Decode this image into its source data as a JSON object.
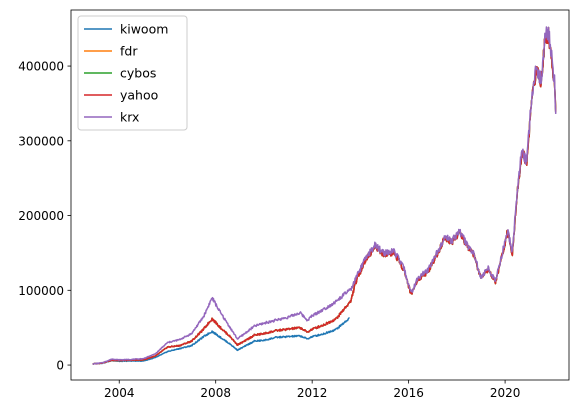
{
  "chart_data": {
    "type": "line",
    "title": "",
    "xlabel": "",
    "ylabel": "",
    "xlim": [
      2002.0,
      2022.65
    ],
    "ylim": [
      -20000,
      475000
    ],
    "grid": false,
    "legend_position": "top-left",
    "x_ticks": [
      2004,
      2008,
      2012,
      2016,
      2020
    ],
    "x_tick_labels": [
      "2004",
      "2008",
      "2012",
      "2016",
      "2020"
    ],
    "y_ticks": [
      0,
      100000,
      200000,
      300000,
      400000
    ],
    "y_tick_labels": [
      "0",
      "100000",
      "200000",
      "300000",
      "400000"
    ],
    "series": [
      {
        "name": "kiwoom",
        "color": "#1f77b4",
        "points": [
          [
            2002.9,
            1500
          ],
          [
            2003.3,
            2500
          ],
          [
            2003.7,
            6000
          ],
          [
            2004.0,
            5000
          ],
          [
            2004.5,
            5500
          ],
          [
            2005.0,
            5500
          ],
          [
            2005.5,
            10000
          ],
          [
            2006.0,
            18000
          ],
          [
            2006.5,
            22000
          ],
          [
            2007.0,
            26000
          ],
          [
            2007.5,
            38000
          ],
          [
            2007.85,
            45000
          ],
          [
            2008.2,
            37000
          ],
          [
            2008.6,
            28000
          ],
          [
            2008.9,
            20000
          ],
          [
            2009.2,
            25000
          ],
          [
            2009.6,
            32000
          ],
          [
            2010.0,
            33000
          ],
          [
            2010.5,
            37000
          ],
          [
            2011.0,
            38000
          ],
          [
            2011.5,
            39000
          ],
          [
            2011.8,
            35000
          ],
          [
            2012.0,
            38000
          ],
          [
            2012.5,
            42000
          ],
          [
            2013.0,
            48000
          ],
          [
            2013.45,
            60000
          ],
          [
            2013.55,
            63000
          ]
        ]
      },
      {
        "name": "fdr",
        "color": "#ff7f0e",
        "points": [
          [
            2002.9,
            1500
          ],
          [
            2003.3,
            2800
          ],
          [
            2003.7,
            6500
          ],
          [
            2004.0,
            6000
          ],
          [
            2004.5,
            6500
          ],
          [
            2005.0,
            7000
          ],
          [
            2005.5,
            12000
          ],
          [
            2006.0,
            24000
          ],
          [
            2006.5,
            26000
          ],
          [
            2007.0,
            32000
          ],
          [
            2007.5,
            48000
          ],
          [
            2007.85,
            62000
          ],
          [
            2008.2,
            50000
          ],
          [
            2008.6,
            38000
          ],
          [
            2008.9,
            27000
          ],
          [
            2009.2,
            32000
          ],
          [
            2009.6,
            40000
          ],
          [
            2010.0,
            42000
          ],
          [
            2010.5,
            46000
          ],
          [
            2011.0,
            48000
          ],
          [
            2011.5,
            50000
          ],
          [
            2011.8,
            44000
          ],
          [
            2012.0,
            48000
          ],
          [
            2012.5,
            54000
          ],
          [
            2013.0,
            62000
          ],
          [
            2013.45,
            80000
          ],
          [
            2013.6,
            85000
          ],
          [
            2013.8,
            110000
          ],
          [
            2014.2,
            140000
          ],
          [
            2014.6,
            158000
          ],
          [
            2015.0,
            148000
          ],
          [
            2015.4,
            150000
          ],
          [
            2015.8,
            128000
          ],
          [
            2016.1,
            95000
          ],
          [
            2016.4,
            115000
          ],
          [
            2016.8,
            125000
          ],
          [
            2017.2,
            150000
          ],
          [
            2017.5,
            170000
          ],
          [
            2017.8,
            165000
          ],
          [
            2018.1,
            178000
          ],
          [
            2018.4,
            160000
          ],
          [
            2018.7,
            148000
          ],
          [
            2019.0,
            115000
          ],
          [
            2019.3,
            128000
          ],
          [
            2019.6,
            110000
          ],
          [
            2019.9,
            150000
          ],
          [
            2020.1,
            178000
          ],
          [
            2020.3,
            150000
          ],
          [
            2020.5,
            230000
          ],
          [
            2020.7,
            285000
          ],
          [
            2020.9,
            270000
          ],
          [
            2021.1,
            355000
          ],
          [
            2021.3,
            395000
          ],
          [
            2021.5,
            380000
          ],
          [
            2021.65,
            435000
          ],
          [
            2021.8,
            445000
          ],
          [
            2021.95,
            405000
          ],
          [
            2022.05,
            375000
          ],
          [
            2022.1,
            338000
          ]
        ]
      },
      {
        "name": "cybos",
        "color": "#2ca02c",
        "points": [
          [
            2002.9,
            1500
          ],
          [
            2003.3,
            2800
          ],
          [
            2003.7,
            6500
          ],
          [
            2004.0,
            6000
          ],
          [
            2004.5,
            6500
          ],
          [
            2005.0,
            7000
          ],
          [
            2005.5,
            12000
          ],
          [
            2006.0,
            24000
          ],
          [
            2006.5,
            26000
          ],
          [
            2007.0,
            32000
          ],
          [
            2007.5,
            48000
          ],
          [
            2007.85,
            62000
          ],
          [
            2008.2,
            50000
          ],
          [
            2008.6,
            38000
          ],
          [
            2008.9,
            27000
          ],
          [
            2009.2,
            32000
          ],
          [
            2009.6,
            40000
          ],
          [
            2010.0,
            42000
          ],
          [
            2010.5,
            46000
          ],
          [
            2011.0,
            48000
          ],
          [
            2011.5,
            50000
          ],
          [
            2011.8,
            44000
          ],
          [
            2012.0,
            48000
          ],
          [
            2012.5,
            54000
          ],
          [
            2013.0,
            62000
          ],
          [
            2013.45,
            80000
          ],
          [
            2013.6,
            85000
          ],
          [
            2013.8,
            110000
          ],
          [
            2014.2,
            140000
          ],
          [
            2014.6,
            158000
          ],
          [
            2015.0,
            148000
          ],
          [
            2015.4,
            150000
          ],
          [
            2015.8,
            128000
          ],
          [
            2016.1,
            95000
          ],
          [
            2016.4,
            115000
          ],
          [
            2016.8,
            125000
          ],
          [
            2017.2,
            150000
          ],
          [
            2017.5,
            170000
          ],
          [
            2017.8,
            165000
          ],
          [
            2018.1,
            178000
          ],
          [
            2018.4,
            160000
          ],
          [
            2018.7,
            148000
          ],
          [
            2019.0,
            115000
          ],
          [
            2019.3,
            128000
          ],
          [
            2019.6,
            110000
          ],
          [
            2019.9,
            150000
          ],
          [
            2020.1,
            178000
          ],
          [
            2020.3,
            150000
          ],
          [
            2020.5,
            230000
          ],
          [
            2020.7,
            285000
          ],
          [
            2020.9,
            270000
          ],
          [
            2021.1,
            355000
          ],
          [
            2021.3,
            395000
          ],
          [
            2021.5,
            380000
          ],
          [
            2021.65,
            435000
          ],
          [
            2021.8,
            445000
          ],
          [
            2021.95,
            405000
          ],
          [
            2022.05,
            375000
          ],
          [
            2022.1,
            338000
          ]
        ]
      },
      {
        "name": "yahoo",
        "color": "#d62728",
        "points": [
          [
            2002.9,
            1500
          ],
          [
            2003.3,
            2800
          ],
          [
            2003.7,
            6500
          ],
          [
            2004.0,
            6000
          ],
          [
            2004.5,
            6500
          ],
          [
            2005.0,
            7000
          ],
          [
            2005.5,
            12000
          ],
          [
            2006.0,
            24000
          ],
          [
            2006.5,
            26000
          ],
          [
            2007.0,
            32000
          ],
          [
            2007.5,
            48000
          ],
          [
            2007.85,
            62000
          ],
          [
            2008.2,
            50000
          ],
          [
            2008.6,
            38000
          ],
          [
            2008.9,
            27000
          ],
          [
            2009.2,
            32000
          ],
          [
            2009.6,
            40000
          ],
          [
            2010.0,
            42000
          ],
          [
            2010.5,
            46000
          ],
          [
            2011.0,
            48000
          ],
          [
            2011.5,
            50000
          ],
          [
            2011.8,
            44000
          ],
          [
            2012.0,
            48000
          ],
          [
            2012.5,
            54000
          ],
          [
            2013.0,
            62000
          ],
          [
            2013.45,
            80000
          ],
          [
            2013.6,
            85000
          ],
          [
            2013.8,
            110000
          ],
          [
            2014.2,
            140000
          ],
          [
            2014.6,
            158000
          ],
          [
            2015.0,
            148000
          ],
          [
            2015.4,
            150000
          ],
          [
            2015.8,
            128000
          ],
          [
            2016.1,
            95000
          ],
          [
            2016.4,
            115000
          ],
          [
            2016.8,
            125000
          ],
          [
            2017.2,
            150000
          ],
          [
            2017.5,
            170000
          ],
          [
            2017.8,
            165000
          ],
          [
            2018.1,
            178000
          ],
          [
            2018.4,
            160000
          ],
          [
            2018.7,
            148000
          ],
          [
            2019.0,
            115000
          ],
          [
            2019.3,
            128000
          ],
          [
            2019.6,
            110000
          ],
          [
            2019.9,
            150000
          ],
          [
            2020.1,
            178000
          ],
          [
            2020.3,
            150000
          ],
          [
            2020.5,
            230000
          ],
          [
            2020.7,
            285000
          ],
          [
            2020.9,
            270000
          ],
          [
            2021.1,
            355000
          ],
          [
            2021.3,
            395000
          ],
          [
            2021.5,
            380000
          ],
          [
            2021.65,
            435000
          ],
          [
            2021.8,
            445000
          ],
          [
            2021.95,
            405000
          ],
          [
            2022.05,
            375000
          ],
          [
            2022.1,
            338000
          ]
        ]
      },
      {
        "name": "krx",
        "color": "#9467bd",
        "points": [
          [
            2002.9,
            1500
          ],
          [
            2003.3,
            3000
          ],
          [
            2003.7,
            8000
          ],
          [
            2004.0,
            7000
          ],
          [
            2004.5,
            7500
          ],
          [
            2005.0,
            8500
          ],
          [
            2005.5,
            15000
          ],
          [
            2006.0,
            30000
          ],
          [
            2006.5,
            34000
          ],
          [
            2007.0,
            42000
          ],
          [
            2007.5,
            65000
          ],
          [
            2007.85,
            90000
          ],
          [
            2008.2,
            70000
          ],
          [
            2008.6,
            50000
          ],
          [
            2008.9,
            35000
          ],
          [
            2009.2,
            42000
          ],
          [
            2009.6,
            52000
          ],
          [
            2010.0,
            56000
          ],
          [
            2010.5,
            60000
          ],
          [
            2011.0,
            64000
          ],
          [
            2011.5,
            70000
          ],
          [
            2011.8,
            60000
          ],
          [
            2012.0,
            66000
          ],
          [
            2012.5,
            75000
          ],
          [
            2013.0,
            85000
          ],
          [
            2013.45,
            98000
          ],
          [
            2013.6,
            100000
          ],
          [
            2013.8,
            115000
          ],
          [
            2014.2,
            142000
          ],
          [
            2014.6,
            160000
          ],
          [
            2015.0,
            150000
          ],
          [
            2015.4,
            152000
          ],
          [
            2015.8,
            130000
          ],
          [
            2016.1,
            96000
          ],
          [
            2016.4,
            117000
          ],
          [
            2016.8,
            127000
          ],
          [
            2017.2,
            152000
          ],
          [
            2017.5,
            172000
          ],
          [
            2017.8,
            166000
          ],
          [
            2018.1,
            180000
          ],
          [
            2018.4,
            162000
          ],
          [
            2018.7,
            150000
          ],
          [
            2019.0,
            116000
          ],
          [
            2019.3,
            130000
          ],
          [
            2019.6,
            112000
          ],
          [
            2019.9,
            152000
          ],
          [
            2020.1,
            180000
          ],
          [
            2020.3,
            152000
          ],
          [
            2020.5,
            232000
          ],
          [
            2020.7,
            288000
          ],
          [
            2020.9,
            272000
          ],
          [
            2021.1,
            358000
          ],
          [
            2021.3,
            398000
          ],
          [
            2021.5,
            382000
          ],
          [
            2021.65,
            438000
          ],
          [
            2021.8,
            448000
          ],
          [
            2021.95,
            408000
          ],
          [
            2022.05,
            378000
          ],
          [
            2022.1,
            336000
          ]
        ]
      }
    ]
  }
}
